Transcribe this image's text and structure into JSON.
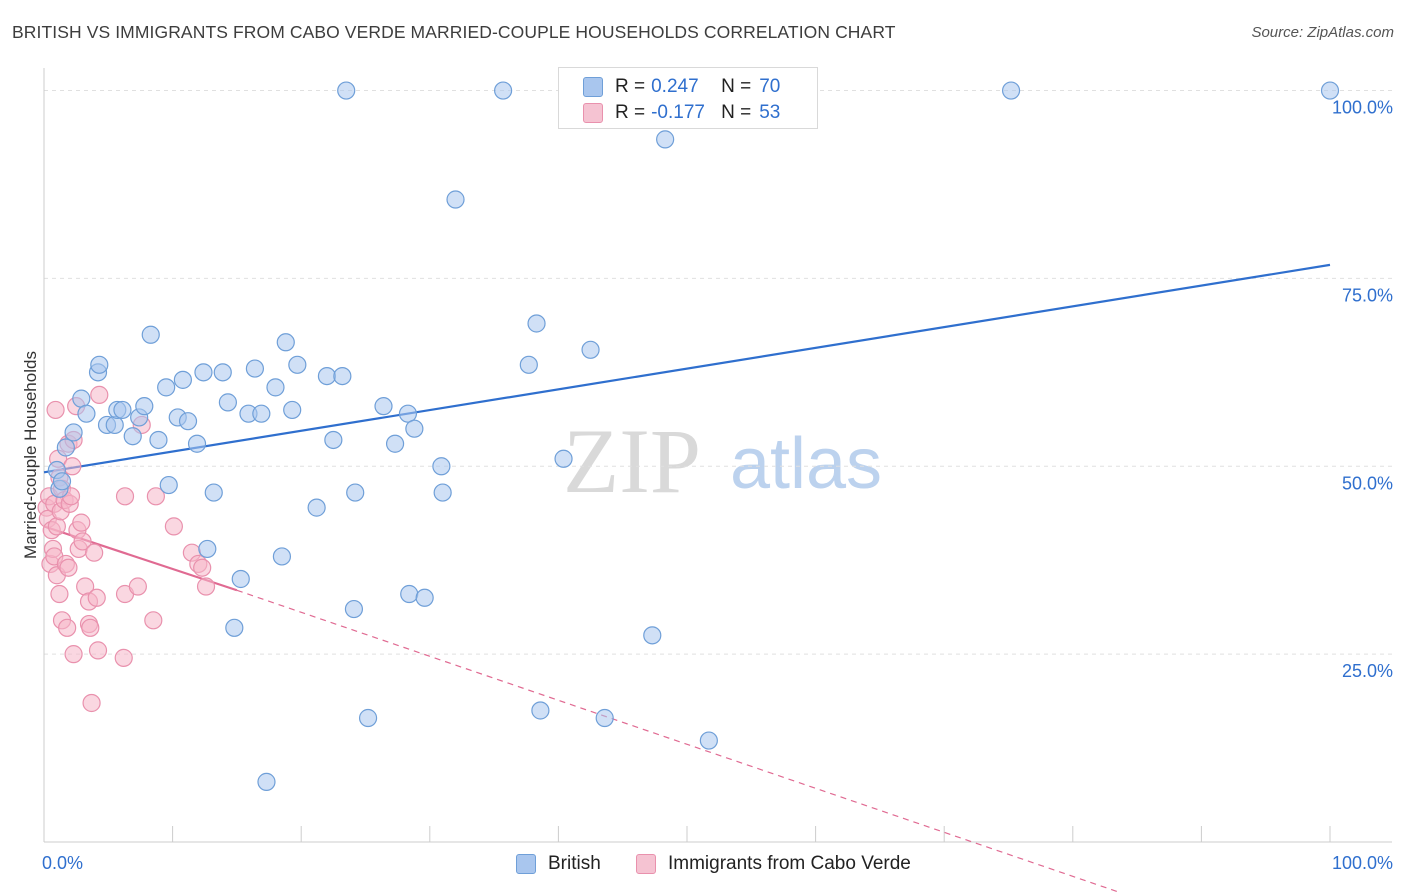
{
  "title": "BRITISH VS IMMIGRANTS FROM CABO VERDE MARRIED-COUPLE HOUSEHOLDS CORRELATION CHART",
  "source": "Source: ZipAtlas.com",
  "watermark": {
    "zip": "ZIP",
    "atlas": "atlas"
  },
  "colors": {
    "british_fill": "#a9c6ee",
    "british_stroke": "#6f9fd8",
    "british_line": "#2f6fce",
    "cabo_fill": "#f5b7c9",
    "cabo_stroke": "#e991ad",
    "cabo_line": "#e06a92",
    "accent_text": "#2f6fce",
    "grid": "#e0e0e0"
  },
  "legend": {
    "rows": [
      {
        "r_label": "R = ",
        "r_value": "0.247",
        "n_label": "N = ",
        "n_value": "70"
      },
      {
        "r_label": "R = ",
        "r_value": "-0.177",
        "n_label": "N = ",
        "n_value": "53"
      }
    ]
  },
  "chart_data": {
    "type": "scatter",
    "title": "BRITISH VS IMMIGRANTS FROM CABO VERDE MARRIED-COUPLE HOUSEHOLDS CORRELATION CHART",
    "xlabel": "",
    "ylabel": "Married-couple Households",
    "xlim": [
      0,
      100
    ],
    "ylim": [
      0,
      103
    ],
    "x_tick_labels": [
      "0.0%",
      "100.0%"
    ],
    "y_ticks": [
      25,
      50,
      75,
      100
    ],
    "y_tick_labels": [
      "25.0%",
      "50.0%",
      "75.0%",
      "100.0%"
    ],
    "grid": true,
    "legend_position": "bottom-center",
    "series": [
      {
        "name": "British",
        "r": 0.247,
        "n": 70,
        "trend": {
          "x": [
            0,
            100
          ],
          "y": [
            49.2,
            76.8
          ],
          "style": "solid"
        },
        "points": [
          [
            1.0,
            49.5
          ],
          [
            1.2,
            47.0
          ],
          [
            1.4,
            48.0
          ],
          [
            1.7,
            52.5
          ],
          [
            2.3,
            54.5
          ],
          [
            2.9,
            59.0
          ],
          [
            3.3,
            57.0
          ],
          [
            4.2,
            62.5
          ],
          [
            4.3,
            63.5
          ],
          [
            4.9,
            55.5
          ],
          [
            5.5,
            55.5
          ],
          [
            5.7,
            57.5
          ],
          [
            6.1,
            57.5
          ],
          [
            6.9,
            54.0
          ],
          [
            7.4,
            56.5
          ],
          [
            7.8,
            58.0
          ],
          [
            8.3,
            67.5
          ],
          [
            8.9,
            53.5
          ],
          [
            9.5,
            60.5
          ],
          [
            9.7,
            47.5
          ],
          [
            10.4,
            56.5
          ],
          [
            10.8,
            61.5
          ],
          [
            11.2,
            56.0
          ],
          [
            11.9,
            53.0
          ],
          [
            12.4,
            62.5
          ],
          [
            12.7,
            39.0
          ],
          [
            13.2,
            46.5
          ],
          [
            13.9,
            62.5
          ],
          [
            14.3,
            58.5
          ],
          [
            14.8,
            28.5
          ],
          [
            15.3,
            35.0
          ],
          [
            15.9,
            57.0
          ],
          [
            16.4,
            63.0
          ],
          [
            16.9,
            57.0
          ],
          [
            17.3,
            8.0
          ],
          [
            18.0,
            60.5
          ],
          [
            18.5,
            38.0
          ],
          [
            18.8,
            66.5
          ],
          [
            19.3,
            57.5
          ],
          [
            19.7,
            63.5
          ],
          [
            21.2,
            44.5
          ],
          [
            22.0,
            62.0
          ],
          [
            22.5,
            53.5
          ],
          [
            23.2,
            62.0
          ],
          [
            23.5,
            100.0
          ],
          [
            24.1,
            31.0
          ],
          [
            24.2,
            46.5
          ],
          [
            25.2,
            16.5
          ],
          [
            26.4,
            58.0
          ],
          [
            27.3,
            53.0
          ],
          [
            28.3,
            57.0
          ],
          [
            28.4,
            33.0
          ],
          [
            28.8,
            55.0
          ],
          [
            29.6,
            32.5
          ],
          [
            30.9,
            50.0
          ],
          [
            31.0,
            46.5
          ],
          [
            32.0,
            85.5
          ],
          [
            35.7,
            100.0
          ],
          [
            37.7,
            63.5
          ],
          [
            38.3,
            69.0
          ],
          [
            38.6,
            17.5
          ],
          [
            40.4,
            51.0
          ],
          [
            42.5,
            65.5
          ],
          [
            43.6,
            16.5
          ],
          [
            47.3,
            27.5
          ],
          [
            48.3,
            93.5
          ],
          [
            49.1,
            100.0
          ],
          [
            51.7,
            13.5
          ],
          [
            75.2,
            100.0
          ],
          [
            100.0,
            100.0
          ]
        ]
      },
      {
        "name": "Immigrants from Cabo Verde",
        "r": -0.177,
        "n": 53,
        "trend": {
          "x": [
            0,
            15,
            85
          ],
          "y": [
            42.0,
            33.5,
            -7.5
          ],
          "style": "solid-then-dashed"
        },
        "points": [
          [
            0.2,
            44.5
          ],
          [
            0.3,
            43.0
          ],
          [
            0.4,
            46.0
          ],
          [
            0.5,
            37.0
          ],
          [
            0.6,
            41.5
          ],
          [
            0.7,
            39.0
          ],
          [
            0.8,
            38.0
          ],
          [
            0.8,
            45.0
          ],
          [
            0.9,
            57.5
          ],
          [
            1.0,
            42.0
          ],
          [
            1.0,
            35.5
          ],
          [
            1.1,
            51.0
          ],
          [
            1.2,
            48.5
          ],
          [
            1.2,
            33.0
          ],
          [
            1.3,
            44.0
          ],
          [
            1.4,
            47.0
          ],
          [
            1.4,
            29.5
          ],
          [
            1.6,
            45.5
          ],
          [
            1.7,
            37.0
          ],
          [
            1.8,
            28.5
          ],
          [
            1.9,
            36.5
          ],
          [
            1.9,
            53.0
          ],
          [
            2.0,
            45.0
          ],
          [
            2.1,
            46.0
          ],
          [
            2.2,
            50.0
          ],
          [
            2.3,
            25.0
          ],
          [
            2.3,
            53.5
          ],
          [
            2.5,
            58.0
          ],
          [
            2.6,
            41.5
          ],
          [
            2.7,
            39.0
          ],
          [
            2.9,
            42.5
          ],
          [
            3.0,
            40.0
          ],
          [
            3.2,
            34.0
          ],
          [
            3.5,
            32.0
          ],
          [
            3.5,
            29.0
          ],
          [
            3.6,
            28.5
          ],
          [
            3.7,
            18.5
          ],
          [
            3.9,
            38.5
          ],
          [
            4.1,
            32.5
          ],
          [
            4.2,
            25.5
          ],
          [
            4.3,
            59.5
          ],
          [
            6.2,
            24.5
          ],
          [
            6.3,
            33.0
          ],
          [
            6.3,
            46.0
          ],
          [
            7.3,
            34.0
          ],
          [
            7.6,
            55.5
          ],
          [
            8.5,
            29.5
          ],
          [
            8.7,
            46.0
          ],
          [
            10.1,
            42.0
          ],
          [
            11.5,
            38.5
          ],
          [
            12.0,
            37.0
          ],
          [
            12.3,
            36.5
          ],
          [
            12.6,
            34.0
          ]
        ]
      }
    ]
  }
}
